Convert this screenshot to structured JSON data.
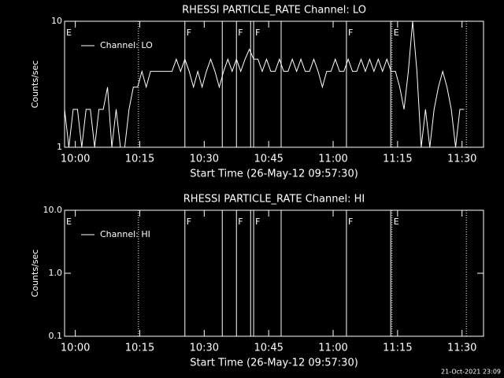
{
  "chart_data": [
    {
      "type": "line",
      "title": "RHESSI PARTICLE_RATE Channel: LO",
      "ylabel": "Counts/sec",
      "xlabel": "Start Time (26-May-12 09:57:30)",
      "log_y": true,
      "ylim": [
        1,
        10
      ],
      "yticks": [
        1,
        10
      ],
      "xlim": [
        0,
        97.5
      ],
      "xticks": [
        {
          "value": 2.5,
          "label": "10:00"
        },
        {
          "value": 17.5,
          "label": "10:15"
        },
        {
          "value": 32.5,
          "label": "10:30"
        },
        {
          "value": 47.5,
          "label": "10:45"
        },
        {
          "value": 62.5,
          "label": "11:00"
        },
        {
          "value": 77.5,
          "label": "11:15"
        },
        {
          "value": 92.5,
          "label": "11:30"
        }
      ],
      "x": [
        0,
        1,
        2,
        3,
        4,
        5,
        6,
        7,
        8,
        9,
        10,
        11,
        12,
        13,
        14,
        15,
        16,
        17,
        18,
        19,
        20,
        21,
        22,
        23,
        24,
        25,
        26,
        27,
        28,
        29,
        30,
        31,
        32,
        33,
        34,
        35,
        36,
        37,
        38,
        39,
        40,
        41,
        42,
        43,
        44,
        45,
        46,
        47,
        48,
        49,
        50,
        51,
        52,
        53,
        54,
        55,
        56,
        57,
        58,
        59,
        60,
        61,
        62,
        63,
        64,
        65,
        66,
        67,
        68,
        69,
        70,
        71,
        72,
        73,
        74,
        75,
        76,
        77,
        78,
        79,
        80,
        81,
        82,
        83,
        84,
        85,
        86,
        87,
        88,
        89,
        90,
        91,
        92,
        93
      ],
      "series": [
        {
          "name": "Channel: LO",
          "color": "#ffffff",
          "values": [
            2,
            1,
            2,
            2,
            1,
            2,
            2,
            1,
            2,
            2,
            3,
            1,
            2,
            1,
            1,
            2,
            3,
            3,
            4,
            3,
            4,
            4,
            4,
            4,
            4,
            4,
            5,
            4,
            5,
            4,
            3,
            4,
            3,
            4,
            5,
            4,
            3,
            4,
            5,
            4,
            5,
            4,
            5,
            6,
            5,
            5,
            4,
            5,
            4,
            4,
            5,
            4,
            4,
            5,
            4,
            5,
            4,
            4,
            5,
            4,
            3,
            4,
            4,
            5,
            4,
            4,
            5,
            4,
            4,
            5,
            4,
            5,
            4,
            5,
            4,
            5,
            4,
            4,
            3,
            2,
            4,
            10,
            4,
            1,
            2,
            1,
            2,
            3,
            4,
            3,
            2,
            1,
            2,
            2
          ]
        }
      ]
    },
    {
      "type": "line",
      "title": "RHESSI PARTICLE_RATE Channel: HI",
      "ylabel": "Counts/sec",
      "xlabel": "Start Time (26-May-12 09:57:30)",
      "log_y": true,
      "ylim": [
        0.1,
        10
      ],
      "yticks": [
        0.1,
        {
          "value": 1,
          "label": "1.0"
        },
        {
          "value": 10,
          "label": "10.0"
        }
      ],
      "xlim": [
        0,
        97.5
      ],
      "xticks": [
        {
          "value": 2.5,
          "label": "10:00"
        },
        {
          "value": 17.5,
          "label": "10:15"
        },
        {
          "value": 32.5,
          "label": "10:30"
        },
        {
          "value": 47.5,
          "label": "10:45"
        },
        {
          "value": 62.5,
          "label": "11:00"
        },
        {
          "value": 77.5,
          "label": "11:15"
        },
        {
          "value": 92.5,
          "label": "11:30"
        }
      ],
      "series": [
        {
          "name": "Channel: HI",
          "color": "#ffffff"
        }
      ]
    }
  ],
  "events": {
    "lines": [
      {
        "x": 17.2,
        "style": "dotted"
      },
      {
        "x": 28.0,
        "style": "solid"
      },
      {
        "x": 36.7,
        "style": "solid"
      },
      {
        "x": 40.0,
        "style": "solid"
      },
      {
        "x": 43.3,
        "style": "solid"
      },
      {
        "x": 44.0,
        "style": "solid"
      },
      {
        "x": 50.4,
        "style": "solid"
      },
      {
        "x": 65.6,
        "style": "solid"
      },
      {
        "x": 75.9,
        "style": "solid"
      },
      {
        "x": 76.2,
        "style": "dotted"
      },
      {
        "x": 93.5,
        "style": "dotted"
      }
    ],
    "flags": [
      {
        "x": 0,
        "label": "E"
      },
      {
        "x": 28.0,
        "label": "F"
      },
      {
        "x": 40.0,
        "label": "F"
      },
      {
        "x": 44.0,
        "label": "F"
      },
      {
        "x": 65.6,
        "label": "F"
      },
      {
        "x": 76.2,
        "label": "E"
      }
    ]
  },
  "timestamp": "21-Oct-2021 23:09"
}
